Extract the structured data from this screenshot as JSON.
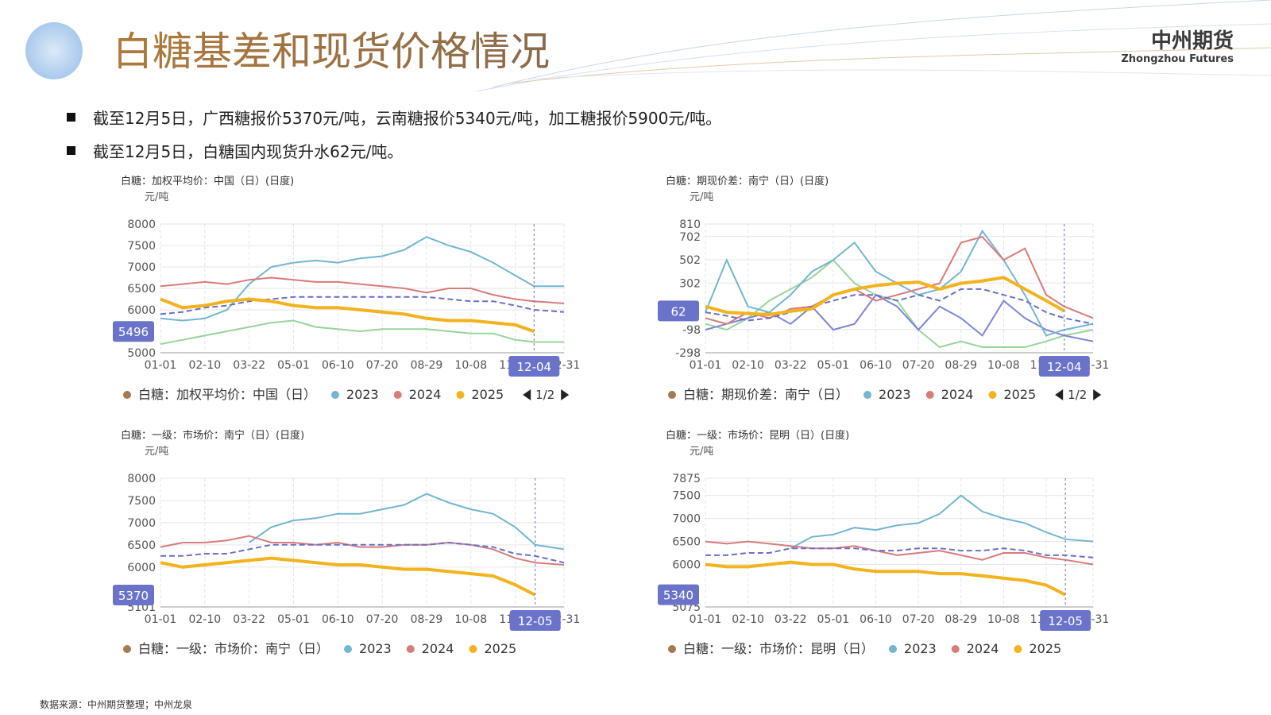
{
  "title": "白糖基差和现货价格情况",
  "logo": {
    "cn": "中州期货",
    "en": "Zhongzhou Futures"
  },
  "bullets": [
    "截至12月5日，广西糖报价5370元/吨，云南糖报价5340元/吨，加工糖报价5900元/吨。",
    "截至12月5日，白糖国内现货升水62元/吨。"
  ],
  "source": "数据来源：中州期货整理；中州龙泉",
  "chart_data": [
    {
      "type": "line",
      "title": "白糖：加权平均价：中国（日）(日度)",
      "y_unit": "元/吨",
      "legend_page": "1/2",
      "x": [
        "01-01",
        "01-21",
        "02-10",
        "03-02",
        "03-22",
        "04-11",
        "05-01",
        "05-21",
        "06-10",
        "06-30",
        "07-20",
        "08-09",
        "08-29",
        "09-18",
        "10-08",
        "10-28",
        "11-17",
        "12-04",
        "12-31"
      ],
      "xlim": [
        "01-01",
        "12-31"
      ],
      "xticks": [
        "01-01",
        "02-10",
        "03-22",
        "05-01",
        "06-10",
        "07-20",
        "08-29",
        "10-08",
        "11-17",
        "12-31"
      ],
      "ylim": [
        5000,
        8000
      ],
      "yticks": [
        5000,
        6000,
        6500,
        7000,
        7500,
        8000
      ],
      "pointer": {
        "x": "12-04",
        "y": 5496
      },
      "series": [
        {
          "name": "白糖：加权平均价：中国（日）",
          "color": "#a57a4e",
          "values": [
            null,
            null,
            null,
            null,
            null,
            null,
            null,
            null,
            null,
            null,
            null,
            null,
            null,
            null,
            null,
            null,
            null,
            null,
            null
          ]
        },
        {
          "color": "#99d49b",
          "values": [
            5200,
            5300,
            5400,
            5500,
            5600,
            5700,
            5750,
            5600,
            5550,
            5500,
            5550,
            5550,
            5550,
            5500,
            5450,
            5450,
            5300,
            5250,
            5250
          ]
        },
        {
          "name": "2023",
          "color": "#72b6cf",
          "values": [
            5800,
            5750,
            5800,
            6000,
            6600,
            7000,
            7100,
            7150,
            7100,
            7200,
            7250,
            7400,
            7700,
            7500,
            7350,
            7100,
            6800,
            6550,
            6550
          ]
        },
        {
          "name": "2024",
          "color": "#d97b7b",
          "values": [
            6550,
            6600,
            6650,
            6600,
            6700,
            6750,
            6700,
            6650,
            6650,
            6600,
            6550,
            6500,
            6400,
            6500,
            6500,
            6350,
            6250,
            6200,
            6150
          ]
        },
        {
          "color": "#6a6fc9",
          "dashed": true,
          "values": [
            5900,
            5950,
            6050,
            6100,
            6200,
            6250,
            6300,
            6300,
            6300,
            6300,
            6300,
            6300,
            6300,
            6250,
            6200,
            6200,
            6100,
            6000,
            5950
          ]
        },
        {
          "name": "2025",
          "color": "#f2b31d",
          "values": [
            6250,
            6050,
            6100,
            6200,
            6250,
            6200,
            6100,
            6050,
            6050,
            6000,
            5950,
            5900,
            5800,
            5750,
            5750,
            5700,
            5650,
            5496,
            null
          ]
        }
      ]
    },
    {
      "type": "line",
      "title": "白糖：期现价差：南宁（日）(日度)",
      "y_unit": "元/吨",
      "legend_page": "1/2",
      "x": [
        "01-01",
        "01-21",
        "02-10",
        "03-02",
        "03-22",
        "04-11",
        "05-01",
        "05-21",
        "06-10",
        "06-30",
        "07-20",
        "08-09",
        "08-29",
        "09-18",
        "10-08",
        "10-28",
        "11-17",
        "12-04",
        "12-31"
      ],
      "xlim": [
        "01-01",
        "12-31"
      ],
      "xticks": [
        "01-01",
        "02-10",
        "03-22",
        "05-01",
        "06-10",
        "07-20",
        "08-29",
        "10-08",
        "11-17",
        "12-31"
      ],
      "ylim": [
        -298,
        810
      ],
      "yticks": [
        -298,
        -98,
        302,
        502,
        702,
        810
      ],
      "pointer": {
        "x": "12-04",
        "y": 62
      },
      "series": [
        {
          "name": "白糖：期现价差：南宁（日）",
          "color": "#a57a4e",
          "values": [
            null,
            null,
            null,
            null,
            null,
            null,
            null,
            null,
            null,
            null,
            null,
            null,
            null,
            null,
            null,
            null,
            null,
            null,
            null
          ]
        },
        {
          "color": "#99d49b",
          "values": [
            -50,
            -100,
            0,
            150,
            250,
            350,
            500,
            300,
            200,
            150,
            -100,
            -250,
            -200,
            -250,
            -250,
            -250,
            -200,
            -150,
            -100
          ]
        },
        {
          "color": "#7d86d6",
          "values": [
            -100,
            -50,
            0,
            50,
            -50,
            100,
            -100,
            -50,
            200,
            100,
            -100,
            100,
            0,
            -150,
            150,
            0,
            -100,
            -150,
            -200
          ]
        },
        {
          "name": "2023",
          "color": "#72b6cf",
          "values": [
            50,
            500,
            100,
            50,
            200,
            400,
            500,
            650,
            400,
            300,
            200,
            250,
            400,
            750,
            500,
            200,
            -150,
            -100,
            -50
          ]
        },
        {
          "name": "2024",
          "color": "#d97b7b",
          "values": [
            0,
            -50,
            50,
            0,
            80,
            100,
            200,
            250,
            150,
            200,
            250,
            300,
            650,
            700,
            500,
            600,
            200,
            100,
            0
          ]
        },
        {
          "color": "#6a6fc9",
          "dashed": true,
          "values": [
            50,
            20,
            -20,
            0,
            50,
            100,
            150,
            200,
            200,
            150,
            200,
            150,
            250,
            250,
            200,
            150,
            50,
            0,
            -50
          ]
        },
        {
          "name": "2025",
          "color": "#f2b31d",
          "values": [
            100,
            50,
            40,
            30,
            60,
            80,
            200,
            250,
            280,
            300,
            310,
            250,
            300,
            320,
            350,
            250,
            150,
            62,
            null
          ]
        }
      ]
    },
    {
      "type": "line",
      "title": "白糖：一级：市场价：南宁（日）(日度)",
      "y_unit": "元/吨",
      "x": [
        "01-01",
        "01-21",
        "02-10",
        "03-02",
        "03-22",
        "04-11",
        "05-01",
        "05-21",
        "06-10",
        "06-30",
        "07-20",
        "08-09",
        "08-29",
        "09-18",
        "10-08",
        "10-28",
        "11-17",
        "12-05",
        "12-31"
      ],
      "xlim": [
        "01-01",
        "12-31"
      ],
      "xticks": [
        "01-01",
        "02-10",
        "03-22",
        "05-01",
        "06-10",
        "07-20",
        "08-29",
        "10-08",
        "11-17",
        "12-31"
      ],
      "ylim": [
        5101,
        8000
      ],
      "yticks": [
        5101,
        6000,
        6500,
        7000,
        7500,
        8000
      ],
      "pointer": {
        "x": "12-05",
        "y": 5370
      },
      "series": [
        {
          "name": "白糖：一级：市场价：南宁（日）",
          "color": "#a57a4e",
          "values": [
            null,
            null,
            null,
            null,
            null,
            null,
            null,
            null,
            null,
            null,
            null,
            null,
            null,
            null,
            null,
            null,
            null,
            null,
            null
          ]
        },
        {
          "name": "2023",
          "color": "#72b6cf",
          "values": [
            null,
            null,
            null,
            null,
            6550,
            6900,
            7050,
            7100,
            7200,
            7200,
            7300,
            7400,
            7650,
            7450,
            7300,
            7200,
            6900,
            6500,
            6400
          ]
        },
        {
          "name": "2024",
          "color": "#d97b7b",
          "values": [
            6450,
            6550,
            6550,
            6600,
            6700,
            6550,
            6550,
            6500,
            6550,
            6450,
            6450,
            6500,
            6500,
            6550,
            6500,
            6400,
            6200,
            6100,
            6050
          ]
        },
        {
          "color": "#6a6fc9",
          "dashed": true,
          "values": [
            6250,
            6250,
            6300,
            6300,
            6400,
            6500,
            6500,
            6500,
            6500,
            6500,
            6500,
            6500,
            6500,
            6550,
            6500,
            6450,
            6300,
            6250,
            6100
          ]
        },
        {
          "name": "2025",
          "color": "#f2b31d",
          "values": [
            6100,
            6000,
            6050,
            6100,
            6150,
            6200,
            6150,
            6100,
            6050,
            6050,
            6000,
            5950,
            5950,
            5900,
            5850,
            5800,
            5600,
            5370,
            null
          ]
        }
      ]
    },
    {
      "type": "line",
      "title": "白糖：一级：市场价：昆明（日）(日度)",
      "y_unit": "元/吨",
      "x": [
        "01-01",
        "01-21",
        "02-10",
        "03-02",
        "03-22",
        "04-11",
        "05-01",
        "05-21",
        "06-10",
        "06-30",
        "07-20",
        "08-09",
        "08-29",
        "09-18",
        "10-08",
        "10-28",
        "11-17",
        "12-05",
        "12-31"
      ],
      "xlim": [
        "01-01",
        "12-31"
      ],
      "xticks": [
        "01-01",
        "02-10",
        "03-22",
        "05-01",
        "06-10",
        "07-20",
        "08-29",
        "10-08",
        "11-17",
        "12-31"
      ],
      "ylim": [
        5075,
        7875
      ],
      "yticks": [
        5075,
        6000,
        6500,
        7000,
        7500,
        7875
      ],
      "pointer": {
        "x": "12-05",
        "y": 5340
      },
      "series": [
        {
          "name": "白糖：一级：市场价：昆明（日）",
          "color": "#a57a4e",
          "values": [
            null,
            null,
            null,
            null,
            null,
            null,
            null,
            null,
            null,
            null,
            null,
            null,
            null,
            null,
            null,
            null,
            null,
            null,
            null
          ]
        },
        {
          "name": "2023",
          "color": "#72b6cf",
          "values": [
            null,
            null,
            null,
            null,
            6350,
            6600,
            6650,
            6800,
            6750,
            6850,
            6900,
            7100,
            7500,
            7150,
            7000,
            6900,
            6700,
            6550,
            6500
          ]
        },
        {
          "name": "2024",
          "color": "#d97b7b",
          "values": [
            6500,
            6450,
            6500,
            6450,
            6400,
            6350,
            6350,
            6400,
            6300,
            6200,
            6250,
            6300,
            6200,
            6100,
            6250,
            6250,
            6150,
            6100,
            6000
          ]
        },
        {
          "color": "#6a6fc9",
          "dashed": true,
          "values": [
            6200,
            6200,
            6250,
            6250,
            6350,
            6350,
            6350,
            6350,
            6300,
            6300,
            6350,
            6350,
            6300,
            6300,
            6350,
            6300,
            6200,
            6200,
            6150
          ]
        },
        {
          "name": "2025",
          "color": "#f2b31d",
          "values": [
            6000,
            5950,
            5950,
            6000,
            6050,
            6000,
            6000,
            5900,
            5850,
            5850,
            5850,
            5800,
            5800,
            5750,
            5700,
            5650,
            5550,
            5340,
            null
          ]
        }
      ]
    }
  ]
}
